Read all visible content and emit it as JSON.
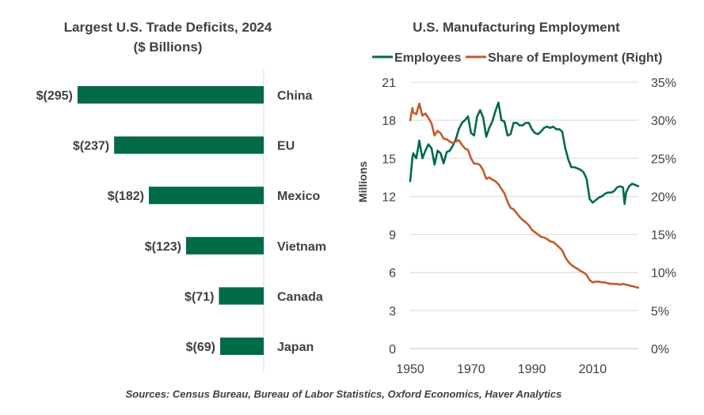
{
  "chart_data": [
    {
      "type": "bar",
      "orientation": "horizontal",
      "title": "Largest U.S. Trade Deficits, 2024",
      "subtitle": "($ Billions)",
      "categories": [
        "China",
        "EU",
        "Mexico",
        "Vietnam",
        "Canada",
        "Japan"
      ],
      "values": [
        -295,
        -237,
        -182,
        -123,
        -71,
        -69
      ],
      "value_labels": [
        "$(295)",
        "$(237)",
        "$(182)",
        "$(123)",
        "$(71)",
        "$(69)"
      ],
      "color": "#006B45"
    },
    {
      "type": "line",
      "title": "U.S. Manufacturing  Employment",
      "ylabel": "Millions",
      "xlim": [
        1950,
        2025
      ],
      "x_ticks": [
        "1950",
        "1970",
        "1990",
        "2010"
      ],
      "ylim": [
        0,
        21
      ],
      "y_ticks": [
        "0",
        "3",
        "6",
        "9",
        "12",
        "15",
        "18",
        "21"
      ],
      "y2lim": [
        0,
        35
      ],
      "y2_ticks": [
        "0%",
        "5%",
        "10%",
        "15%",
        "20%",
        "25%",
        "30%",
        "35%"
      ],
      "legend_position": "top",
      "series": [
        {
          "name": "Employees",
          "axis": "left",
          "color": "#006B45",
          "x": [
            1950,
            1950.7,
            1951,
            1952,
            1953,
            1954,
            1955,
            1956,
            1957,
            1958,
            1959,
            1960,
            1961,
            1962,
            1963,
            1964,
            1965,
            1966,
            1967,
            1968,
            1969,
            1970,
            1971,
            1972,
            1973,
            1974,
            1975,
            1976,
            1977,
            1978,
            1979,
            1980,
            1981,
            1982,
            1983,
            1984,
            1985,
            1986,
            1987,
            1988,
            1989,
            1990,
            1991,
            1992,
            1993,
            1994,
            1995,
            1996,
            1997,
            1998,
            1999,
            2000,
            2001,
            2002,
            2003,
            2004,
            2005,
            2006,
            2007,
            2008,
            2009,
            2010,
            2011,
            2012,
            2013,
            2014,
            2015,
            2016,
            2017,
            2018,
            2019,
            2020,
            2020.5,
            2021,
            2022,
            2023,
            2024,
            2025
          ],
          "values": [
            13.2,
            15.0,
            15.4,
            15.0,
            16.4,
            15.0,
            15.6,
            16.1,
            15.8,
            14.5,
            15.6,
            15.4,
            14.6,
            15.5,
            15.6,
            16.0,
            16.5,
            17.3,
            17.8,
            18.0,
            18.3,
            17.0,
            16.8,
            18.3,
            18.8,
            18.2,
            16.7,
            17.4,
            17.9,
            18.7,
            19.4,
            18.0,
            17.9,
            16.8,
            16.9,
            17.8,
            17.8,
            17.6,
            17.6,
            17.8,
            17.8,
            17.3,
            17.0,
            16.9,
            17.1,
            17.4,
            17.5,
            17.4,
            17.5,
            17.3,
            17.3,
            17.1,
            15.8,
            14.9,
            14.3,
            14.3,
            14.2,
            14.1,
            13.9,
            13.4,
            11.8,
            11.5,
            11.7,
            11.9,
            12.0,
            12.2,
            12.3,
            12.3,
            12.4,
            12.7,
            12.8,
            12.7,
            11.4,
            12.3,
            12.8,
            13.0,
            12.9,
            12.8
          ]
        },
        {
          "name": "Share of Employment (Right)",
          "axis": "right",
          "color": "#C55A2A",
          "x": [
            1950,
            1950.7,
            1951,
            1952,
            1953,
            1954,
            1955,
            1956,
            1957,
            1958,
            1959,
            1960,
            1961,
            1962,
            1963,
            1964,
            1965,
            1966,
            1967,
            1968,
            1969,
            1970,
            1971,
            1972,
            1973,
            1974,
            1975,
            1976,
            1977,
            1978,
            1979,
            1980,
            1981,
            1982,
            1983,
            1984,
            1985,
            1986,
            1987,
            1988,
            1989,
            1990,
            1991,
            1992,
            1993,
            1994,
            1995,
            1996,
            1997,
            1998,
            1999,
            2000,
            2001,
            2002,
            2003,
            2004,
            2005,
            2006,
            2007,
            2008,
            2009,
            2010,
            2011,
            2012,
            2013,
            2014,
            2015,
            2016,
            2017,
            2018,
            2019,
            2020,
            2021,
            2022,
            2023,
            2024,
            2025
          ],
          "values": [
            30.0,
            31.6,
            31.0,
            30.8,
            32.2,
            30.6,
            30.9,
            30.3,
            29.6,
            28.0,
            28.6,
            28.3,
            27.6,
            27.5,
            27.2,
            27.0,
            27.2,
            27.4,
            26.8,
            26.3,
            26.1,
            25.0,
            24.3,
            24.3,
            24.1,
            23.4,
            22.3,
            22.5,
            22.2,
            22.0,
            21.6,
            21.0,
            20.4,
            19.3,
            18.5,
            18.3,
            17.8,
            17.3,
            16.9,
            16.6,
            16.2,
            15.6,
            15.3,
            15.0,
            14.7,
            14.6,
            14.4,
            14.1,
            14.0,
            13.7,
            13.3,
            12.9,
            12.0,
            11.4,
            11.0,
            10.7,
            10.5,
            10.2,
            10.0,
            9.7,
            9.0,
            8.7,
            8.8,
            8.8,
            8.7,
            8.7,
            8.6,
            8.5,
            8.5,
            8.5,
            8.4,
            8.5,
            8.4,
            8.3,
            8.2,
            8.1,
            8.0
          ]
        }
      ]
    }
  ],
  "source": "Sources: Census Bureau, Bureau of Labor Statistics, Oxford Economics, Haver Analytics"
}
